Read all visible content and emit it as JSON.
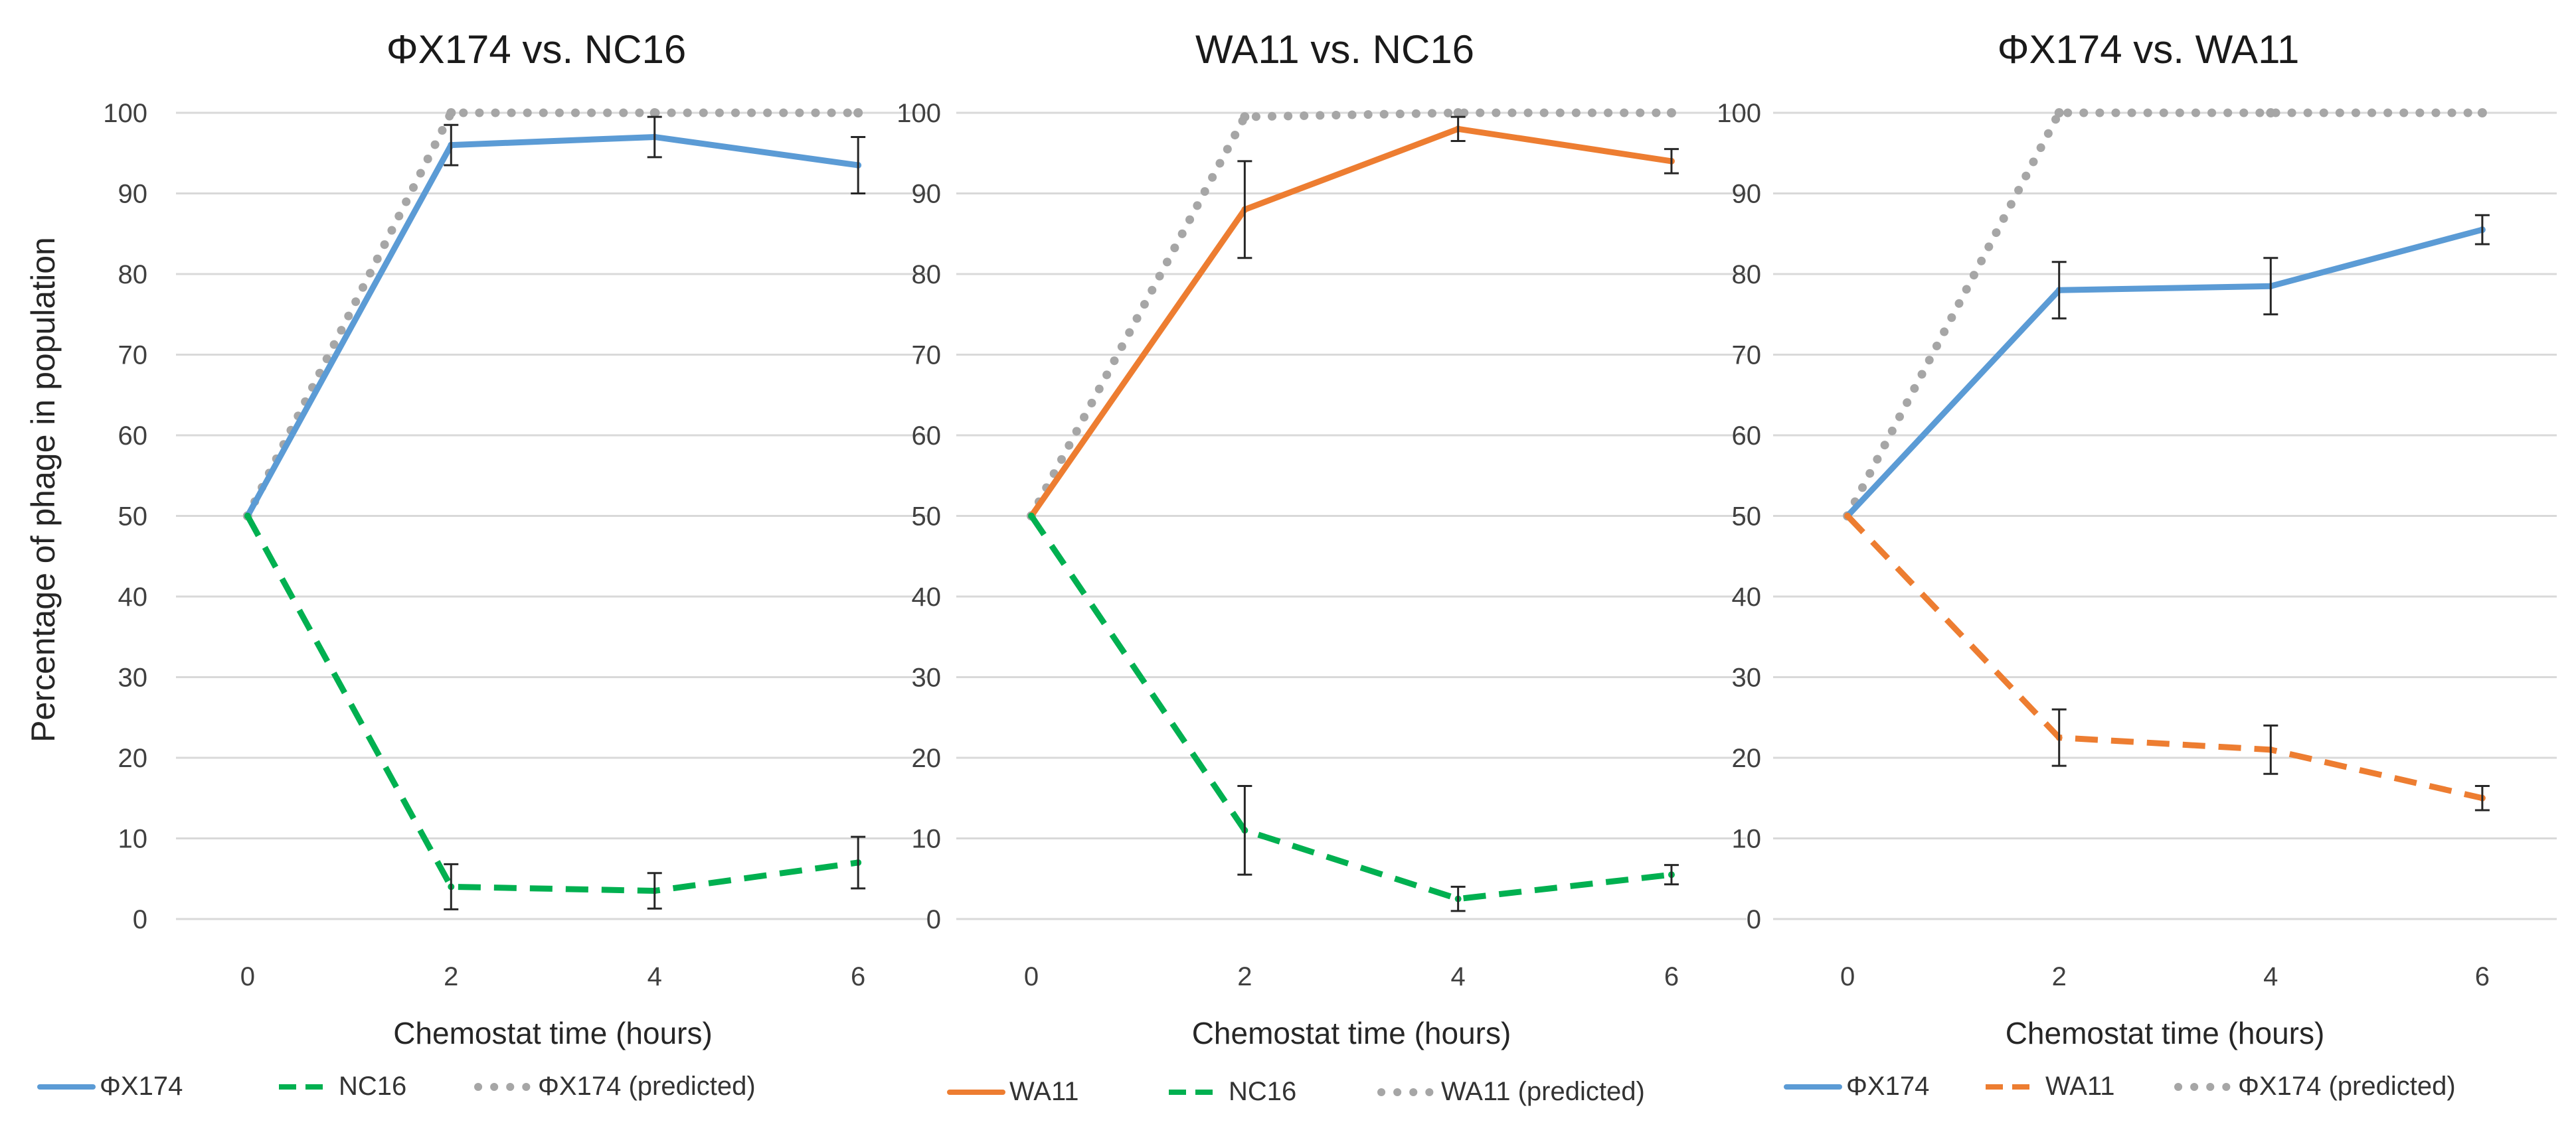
{
  "figure": {
    "ylabel": "Percentage of phage in population"
  },
  "chart_data": [
    {
      "type": "line",
      "title": "ΦX174 vs. NC16",
      "xlabel": "Chemostat time (hours)",
      "ylabel": "Percentage of phage in population",
      "x": [
        0,
        2,
        4,
        6
      ],
      "ylim": [
        0,
        100
      ],
      "yticks": [
        0,
        10,
        20,
        30,
        40,
        50,
        60,
        70,
        80,
        90,
        100
      ],
      "grid": true,
      "legend": "bottom",
      "series": [
        {
          "name": "ΦX174",
          "color": "#5b9bd5",
          "style": "solid",
          "values": [
            50,
            96,
            97,
            93.5
          ],
          "errors": [
            0,
            2.5,
            2.5,
            3.5
          ]
        },
        {
          "name": "NC16",
          "color": "#00b050",
          "style": "dashed",
          "values": [
            50,
            4,
            3.5,
            7
          ],
          "errors": [
            0,
            2.8,
            2.2,
            3.2
          ]
        },
        {
          "name": "ΦX174 (predicted)",
          "color": "#a6a6a6",
          "style": "dotted",
          "values": [
            50,
            100,
            100,
            100
          ],
          "errors": [
            0,
            0,
            0,
            0
          ]
        }
      ]
    },
    {
      "type": "line",
      "title": "WA11 vs. NC16",
      "xlabel": "Chemostat time (hours)",
      "ylabel": "",
      "x": [
        0,
        2,
        4,
        6
      ],
      "ylim": [
        0,
        100
      ],
      "yticks": [
        0,
        10,
        20,
        30,
        40,
        50,
        60,
        70,
        80,
        90,
        100
      ],
      "grid": true,
      "legend": "bottom",
      "series": [
        {
          "name": "WA11",
          "color": "#ed7d31",
          "style": "solid",
          "values": [
            50,
            88,
            98,
            94
          ],
          "errors": [
            0,
            6,
            1.5,
            1.5
          ]
        },
        {
          "name": "NC16",
          "color": "#00b050",
          "style": "dashed",
          "values": [
            50,
            11,
            2.5,
            5.5
          ],
          "errors": [
            0,
            5.5,
            1.5,
            1.2
          ]
        },
        {
          "name": "WA11 (predicted)",
          "color": "#a6a6a6",
          "style": "dotted",
          "values": [
            50,
            99.5,
            100,
            100
          ],
          "errors": [
            0,
            0,
            0,
            0
          ]
        }
      ]
    },
    {
      "type": "line",
      "title": "ΦX174 vs. WA11",
      "xlabel": "Chemostat time (hours)",
      "ylabel": "",
      "x": [
        0,
        2,
        4,
        6
      ],
      "ylim": [
        0,
        100
      ],
      "yticks": [
        0,
        10,
        20,
        30,
        40,
        50,
        60,
        70,
        80,
        90,
        100
      ],
      "grid": true,
      "legend": "bottom",
      "series": [
        {
          "name": "ΦX174",
          "color": "#5b9bd5",
          "style": "solid",
          "values": [
            50,
            78,
            78.5,
            85.5
          ],
          "errors": [
            0,
            3.5,
            3.5,
            1.8
          ]
        },
        {
          "name": "WA11",
          "color": "#ed7d31",
          "style": "dashed",
          "values": [
            50,
            22.5,
            21,
            15
          ],
          "errors": [
            0,
            3.5,
            3,
            1.5
          ]
        },
        {
          "name": "ΦX174 (predicted)",
          "color": "#a6a6a6",
          "style": "dotted",
          "values": [
            50,
            100,
            100,
            100
          ],
          "errors": [
            0,
            0,
            0,
            0
          ]
        }
      ]
    }
  ]
}
